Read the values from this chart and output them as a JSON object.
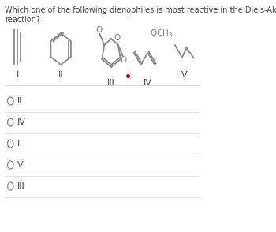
{
  "title_line1": "Which one of the following dienophiles is most reactive in the Diels-Alder",
  "title_line2": "reaction?",
  "bg_color": "#ffffff",
  "text_color": "#444444",
  "choices": [
    "II",
    "IV",
    "I",
    "V",
    "III"
  ],
  "divider_color": "#dddddd",
  "circle_color": "#888888",
  "red_dot_color": "#cc0000",
  "struct_color": "#888888"
}
